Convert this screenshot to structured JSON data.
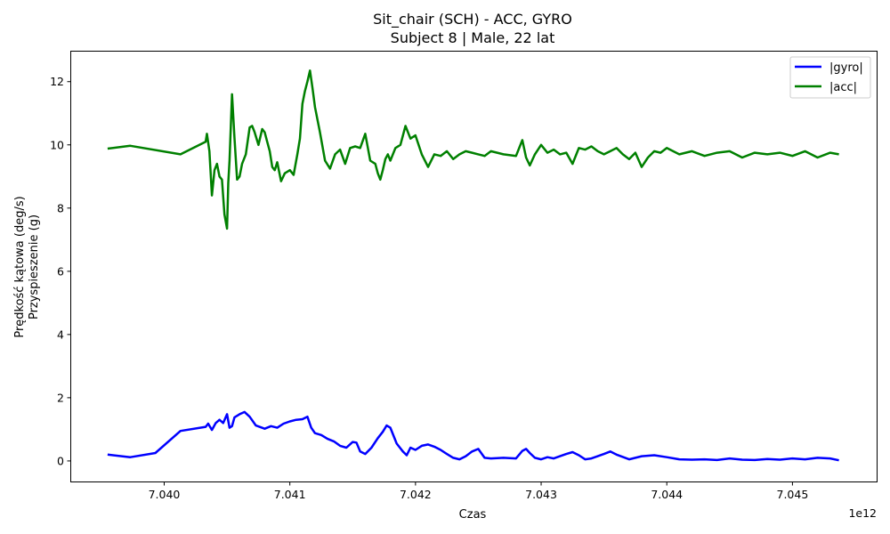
{
  "chart_data": {
    "type": "line",
    "title": "Sit_chair (SCH) - ACC, GYRO",
    "subtitle": "Subject 8 | Male, 22 lat",
    "xlabel": "Czas",
    "ylabel_line1": "Prędkość kątowa (deg/s)",
    "ylabel_line2": "Przyspieszenie (g)",
    "x_offset_label": "1e12",
    "x_scale": 1000000000000,
    "xlim": [
      7.03926,
      7.04567
    ],
    "ylim": [
      -0.65,
      12.95
    ],
    "x_ticks": [
      7.04,
      7.041,
      7.042,
      7.043,
      7.044,
      7.045
    ],
    "x_tick_labels": [
      "7.040",
      "7.041",
      "7.042",
      "7.043",
      "7.044",
      "7.045"
    ],
    "y_ticks": [
      0,
      2,
      4,
      6,
      8,
      10,
      12
    ],
    "y_tick_labels": [
      "0",
      "2",
      "4",
      "6",
      "8",
      "10",
      "12"
    ],
    "grid": false,
    "legend_position": "top-right",
    "series": [
      {
        "name": "|gyro|",
        "color": "#0000ff",
        "x": [
          7.03955,
          7.03973,
          7.03993,
          7.04013,
          7.04033,
          7.04035,
          7.04038,
          7.04041,
          7.04044,
          7.04047,
          7.0405,
          7.04052,
          7.04054,
          7.04056,
          7.0406,
          7.04064,
          7.04068,
          7.04073,
          7.0408,
          7.04085,
          7.0409,
          7.04095,
          7.041,
          7.04105,
          7.0411,
          7.04114,
          7.04117,
          7.0412,
          7.04125,
          7.0413,
          7.04135,
          7.0414,
          7.04145,
          7.0415,
          7.04153,
          7.04156,
          7.0416,
          7.04165,
          7.0417,
          7.04174,
          7.04177,
          7.0418,
          7.04185,
          7.0419,
          7.04193,
          7.04196,
          7.042,
          7.04205,
          7.0421,
          7.04215,
          7.0422,
          7.04225,
          7.0423,
          7.04235,
          7.0424,
          7.04245,
          7.0425,
          7.04255,
          7.0426,
          7.0427,
          7.0428,
          7.04285,
          7.04288,
          7.04291,
          7.04295,
          7.043,
          7.04305,
          7.0431,
          7.04315,
          7.0432,
          7.04325,
          7.0433,
          7.04335,
          7.0434,
          7.04345,
          7.0435,
          7.04355,
          7.0436,
          7.0437,
          7.0438,
          7.0439,
          7.044,
          7.0441,
          7.0442,
          7.0443,
          7.0444,
          7.0445,
          7.0446,
          7.0447,
          7.0448,
          7.0449,
          7.045,
          7.0451,
          7.0452,
          7.0453,
          7.04537
        ],
        "values": [
          0.2,
          0.12,
          0.25,
          0.95,
          1.08,
          1.18,
          0.98,
          1.2,
          1.3,
          1.2,
          1.48,
          1.05,
          1.1,
          1.38,
          1.48,
          1.55,
          1.4,
          1.12,
          1.02,
          1.1,
          1.05,
          1.18,
          1.25,
          1.3,
          1.32,
          1.4,
          1.05,
          0.88,
          0.82,
          0.7,
          0.62,
          0.48,
          0.42,
          0.6,
          0.58,
          0.3,
          0.22,
          0.42,
          0.72,
          0.92,
          1.12,
          1.05,
          0.55,
          0.3,
          0.18,
          0.42,
          0.35,
          0.48,
          0.52,
          0.45,
          0.35,
          0.22,
          0.1,
          0.05,
          0.15,
          0.3,
          0.38,
          0.1,
          0.08,
          0.1,
          0.08,
          0.32,
          0.38,
          0.25,
          0.1,
          0.05,
          0.12,
          0.08,
          0.15,
          0.22,
          0.28,
          0.18,
          0.05,
          0.08,
          0.15,
          0.22,
          0.3,
          0.2,
          0.05,
          0.15,
          0.18,
          0.12,
          0.05,
          0.04,
          0.05,
          0.03,
          0.08,
          0.04,
          0.03,
          0.06,
          0.04,
          0.08,
          0.05,
          0.1,
          0.08,
          0.02
        ]
      },
      {
        "name": "|acc|",
        "color": "#008000",
        "x": [
          7.03955,
          7.03973,
          7.04013,
          7.04033,
          7.04034,
          7.04036,
          7.04038,
          7.0404,
          7.04042,
          7.04044,
          7.04046,
          7.04048,
          7.0405,
          7.04051,
          7.04052,
          7.04054,
          7.04056,
          7.04058,
          7.0406,
          7.04062,
          7.04065,
          7.04068,
          7.0407,
          7.04072,
          7.04075,
          7.04078,
          7.0408,
          7.04082,
          7.04084,
          7.04086,
          7.04088,
          7.0409,
          7.04093,
          7.04096,
          7.041,
          7.04103,
          7.04106,
          7.04108,
          7.0411,
          7.04112,
          7.04114,
          7.04116,
          7.04118,
          7.0412,
          7.04124,
          7.04128,
          7.04132,
          7.04136,
          7.0414,
          7.04144,
          7.04148,
          7.04152,
          7.04156,
          7.0416,
          7.04164,
          7.04168,
          7.0417,
          7.04172,
          7.04174,
          7.04176,
          7.04178,
          7.0418,
          7.04184,
          7.04188,
          7.04192,
          7.04196,
          7.042,
          7.04205,
          7.0421,
          7.04215,
          7.0422,
          7.04225,
          7.0423,
          7.04235,
          7.0424,
          7.04245,
          7.0425,
          7.04255,
          7.0426,
          7.0427,
          7.0428,
          7.04285,
          7.04288,
          7.04291,
          7.04295,
          7.043,
          7.04305,
          7.0431,
          7.04315,
          7.0432,
          7.04325,
          7.0433,
          7.04335,
          7.0434,
          7.04345,
          7.0435,
          7.04355,
          7.0436,
          7.04365,
          7.0437,
          7.04375,
          7.0438,
          7.04385,
          7.0439,
          7.04395,
          7.044,
          7.0441,
          7.0442,
          7.0443,
          7.0444,
          7.0445,
          7.0446,
          7.0447,
          7.0448,
          7.0449,
          7.045,
          7.0451,
          7.0452,
          7.0453,
          7.04537
        ],
        "values": [
          9.88,
          9.97,
          9.7,
          10.1,
          10.35,
          9.8,
          8.4,
          9.2,
          9.4,
          9.0,
          8.9,
          7.8,
          7.35,
          8.8,
          9.5,
          11.6,
          10.2,
          8.9,
          9.0,
          9.4,
          9.7,
          10.55,
          10.6,
          10.4,
          10.0,
          10.5,
          10.4,
          10.1,
          9.8,
          9.3,
          9.2,
          9.45,
          8.85,
          9.1,
          9.2,
          9.05,
          9.7,
          10.2,
          11.3,
          11.7,
          12.0,
          12.35,
          11.8,
          11.2,
          10.4,
          9.5,
          9.25,
          9.7,
          9.85,
          9.4,
          9.9,
          9.95,
          9.9,
          10.35,
          9.5,
          9.4,
          9.1,
          8.9,
          9.2,
          9.55,
          9.7,
          9.5,
          9.9,
          10.0,
          10.6,
          10.2,
          10.3,
          9.7,
          9.3,
          9.7,
          9.65,
          9.8,
          9.55,
          9.7,
          9.8,
          9.75,
          9.7,
          9.65,
          9.8,
          9.7,
          9.65,
          10.15,
          9.6,
          9.35,
          9.7,
          10.0,
          9.75,
          9.85,
          9.7,
          9.75,
          9.4,
          9.9,
          9.85,
          9.95,
          9.8,
          9.7,
          9.8,
          9.9,
          9.7,
          9.55,
          9.75,
          9.3,
          9.6,
          9.8,
          9.75,
          9.9,
          9.7,
          9.8,
          9.65,
          9.75,
          9.8,
          9.6,
          9.75,
          9.7,
          9.75,
          9.65,
          9.8,
          9.6,
          9.75,
          9.7
        ]
      }
    ]
  }
}
